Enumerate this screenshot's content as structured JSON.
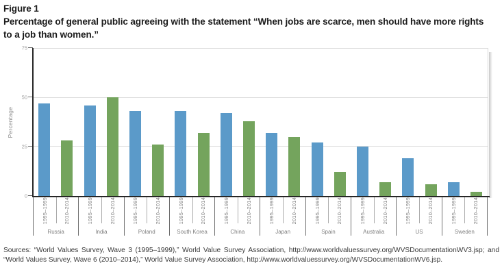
{
  "figure": {
    "label": "Figure 1",
    "title_line1": "Percentage of general public agreeing with the statement “When jobs are scarce, men should have more rights",
    "title_line2": "to a job than women.”"
  },
  "chart_data": {
    "type": "bar",
    "title": "",
    "xlabel": "",
    "ylabel": "Percentage",
    "ylim": [
      0,
      75
    ],
    "yticks": [
      0,
      25,
      50,
      75
    ],
    "grid": true,
    "legend_position": "none",
    "categories": [
      "Russia",
      "India",
      "Poland",
      "South Korea",
      "China",
      "Japan",
      "Spain",
      "Australia",
      "US",
      "Sweden"
    ],
    "series": [
      {
        "name": "1995–1999",
        "color": "#5b9ac9",
        "values": [
          47,
          46,
          43,
          43,
          42,
          32,
          27,
          25,
          19,
          7
        ]
      },
      {
        "name": "2010–2014",
        "color": "#74a45d",
        "values": [
          28,
          50,
          26,
          32,
          38,
          30,
          12,
          7,
          6,
          2
        ]
      }
    ]
  },
  "sources": {
    "line1": "Sources: “World Values Survey, Wave 3 (1995–1999),” World Value Survey Association, http://www.worldvaluessurvey.org/WVSDocumentationWV3.jsp; and",
    "line2": "“World Values Survey, Wave 6 (2010–2014),” World Value Survey Association, http://www.worldvaluessurvey.org/WVSDocumentationWV6.jsp."
  },
  "colors": {
    "series1": "#5b9ac9",
    "series2": "#74a45d",
    "gridline": "#dcdcdc",
    "axis": "#262626",
    "tick_label": "#9a9a9a",
    "category_label": "#7f7f7f"
  }
}
